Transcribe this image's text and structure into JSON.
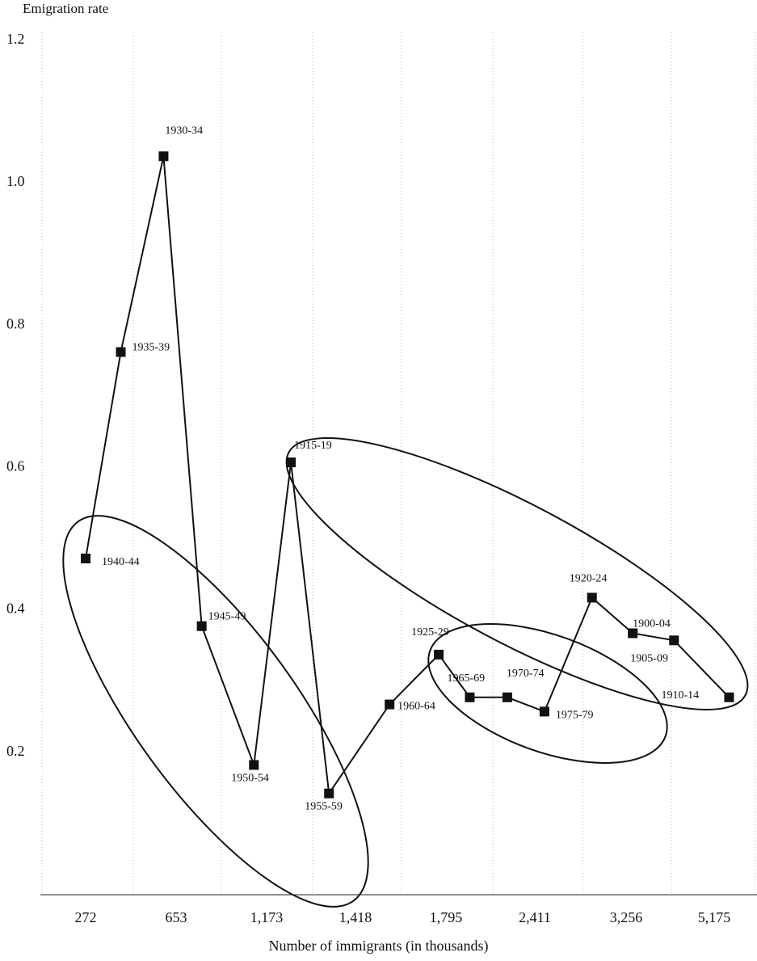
{
  "chart_data": {
    "type": "line",
    "title": "",
    "ylabel": "Emigration rate",
    "xlabel": "Number of immigrants (in thousands)",
    "x_tick_labels": [
      "272",
      "653",
      "1,173",
      "1,418",
      "1,795",
      "2,411",
      "3,256",
      "5,175"
    ],
    "y_tick_labels": [
      "0.2",
      "0.4",
      "0.6",
      "0.8",
      "1.0",
      "1.2"
    ],
    "ylim": [
      0,
      1.2
    ],
    "grid": "vertical dotted lines",
    "points": [
      {
        "label": "1940-44",
        "x": 272,
        "y": 0.47
      },
      {
        "label": "1935-39",
        "x": 420,
        "y": 0.76
      },
      {
        "label": "1930-34",
        "x": 600,
        "y": 1.035
      },
      {
        "label": "1945-49",
        "x": 800,
        "y": 0.375
      },
      {
        "label": "1950-54",
        "x": 1100,
        "y": 0.18
      },
      {
        "label": "1915-19",
        "x": 1240,
        "y": 0.605
      },
      {
        "label": "1955-59",
        "x": 1345,
        "y": 0.14
      },
      {
        "label": "1960-64",
        "x": 1560,
        "y": 0.265
      },
      {
        "label": "1925-29",
        "x": 1765,
        "y": 0.335
      },
      {
        "label": "1965-69",
        "x": 1960,
        "y": 0.275
      },
      {
        "label": "1970-74",
        "x": 2220,
        "y": 0.275
      },
      {
        "label": "1975-79",
        "x": 2500,
        "y": 0.255
      },
      {
        "label": "1920-24",
        "x": 2940,
        "y": 0.415
      },
      {
        "label": "1900-04",
        "x": 3400,
        "y": 0.365
      },
      {
        "label": "1905-09",
        "x": 4300,
        "y": 0.355
      },
      {
        "label": "1910-14",
        "x": 5500,
        "y": 0.275
      }
    ],
    "marker": "filled square",
    "line_color": "#111111"
  }
}
